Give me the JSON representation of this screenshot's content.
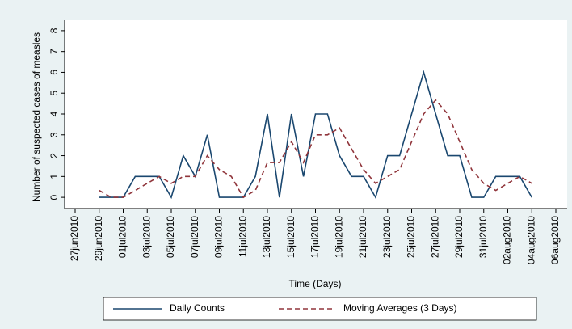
{
  "chart_data": {
    "type": "line",
    "xlabel": "Time (Days)",
    "ylabel": "Number of suspected cases of measles",
    "x": [
      "2010-06-29",
      "2010-06-30",
      "2010-07-01",
      "2010-07-02",
      "2010-07-03",
      "2010-07-04",
      "2010-07-05",
      "2010-07-06",
      "2010-07-07",
      "2010-07-08",
      "2010-07-09",
      "2010-07-10",
      "2010-07-11",
      "2010-07-12",
      "2010-07-13",
      "2010-07-14",
      "2010-07-15",
      "2010-07-16",
      "2010-07-17",
      "2010-07-18",
      "2010-07-19",
      "2010-07-20",
      "2010-07-21",
      "2010-07-22",
      "2010-07-23",
      "2010-07-24",
      "2010-07-25",
      "2010-07-26",
      "2010-07-27",
      "2010-07-28",
      "2010-07-29",
      "2010-07-30",
      "2010-07-31",
      "2010-08-01",
      "2010-08-02",
      "2010-08-03",
      "2010-08-04"
    ],
    "series": [
      {
        "name": "Daily Counts",
        "color": "#1a476f",
        "dash": false,
        "values": [
          0,
          0,
          0,
          1,
          1,
          1,
          0,
          2,
          1,
          3,
          0,
          0,
          0,
          1,
          4,
          0,
          4,
          1,
          4,
          4,
          2,
          1,
          1,
          0,
          2,
          2,
          4,
          6,
          4,
          2,
          2,
          0,
          0,
          1,
          1,
          1,
          0
        ]
      },
      {
        "name": "Moving Averages (3 Days)",
        "color": "#90353b",
        "dash": true,
        "values": [
          0.33,
          0,
          0,
          0.33,
          0.67,
          1,
          0.67,
          1,
          1,
          2,
          1.33,
          1,
          0,
          0.33,
          1.67,
          1.67,
          2.67,
          1.67,
          3,
          3,
          3.33,
          2.33,
          1.33,
          0.67,
          1,
          1.33,
          2.67,
          4,
          4.67,
          4,
          2.67,
          1.33,
          0.67,
          0.33,
          0.67,
          1,
          0.67
        ]
      }
    ],
    "xlim": [
      "2010-06-27",
      "2010-08-06"
    ],
    "xticks": [
      {
        "value": "2010-06-27",
        "label": "27jun2010"
      },
      {
        "value": "2010-06-29",
        "label": "29jun2010"
      },
      {
        "value": "2010-07-01",
        "label": "01jul2010"
      },
      {
        "value": "2010-07-03",
        "label": "03jul2010"
      },
      {
        "value": "2010-07-05",
        "label": "05jul2010"
      },
      {
        "value": "2010-07-07",
        "label": "07jul2010"
      },
      {
        "value": "2010-07-09",
        "label": "09jul2010"
      },
      {
        "value": "2010-07-11",
        "label": "11jul2010"
      },
      {
        "value": "2010-07-13",
        "label": "13jul2010"
      },
      {
        "value": "2010-07-15",
        "label": "15jul2010"
      },
      {
        "value": "2010-07-17",
        "label": "17jul2010"
      },
      {
        "value": "2010-07-19",
        "label": "19jul2010"
      },
      {
        "value": "2010-07-21",
        "label": "21jul2010"
      },
      {
        "value": "2010-07-23",
        "label": "23jul2010"
      },
      {
        "value": "2010-07-25",
        "label": "25jul2010"
      },
      {
        "value": "2010-07-27",
        "label": "27jul2010"
      },
      {
        "value": "2010-07-29",
        "label": "29jul2010"
      },
      {
        "value": "2010-07-31",
        "label": "31jul2010"
      },
      {
        "value": "2010-08-02",
        "label": "02aug2010"
      },
      {
        "value": "2010-08-04",
        "label": "04aug2010"
      },
      {
        "value": "2010-08-06",
        "label": "06aug2010"
      }
    ],
    "ylim": [
      -0.5,
      8.5
    ],
    "yticks": [
      0,
      1,
      2,
      3,
      4,
      5,
      6,
      7,
      8
    ],
    "grid": false,
    "legend": "bottom"
  }
}
